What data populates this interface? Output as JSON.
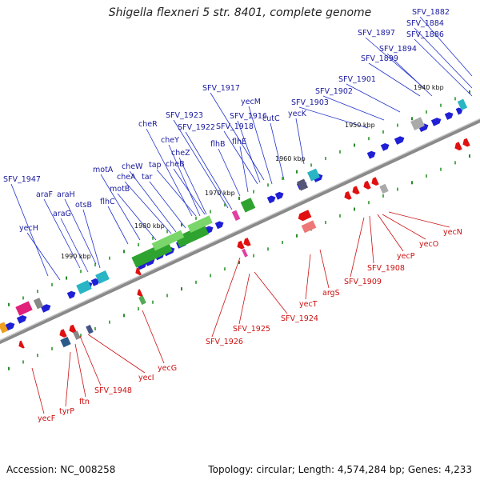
{
  "title": "Shigella flexneri 5 str. 8401, complete genome",
  "footer": {
    "accession": "Accession: NC_008258",
    "topology": "Topology: circular; Length: 4,574,284 bp; Genes: 4,233"
  },
  "colors": {
    "forward_gene": "#1f1fd6",
    "reverse_gene": "#e01010",
    "backbone": "#777777"
  },
  "kbp_markers": [
    "1940 kbp",
    "1950 kbp",
    "1960 kbp",
    "1970 kbp",
    "1980 kbp",
    "1990 kbp"
  ],
  "top_labels": [
    "SFV_1882",
    "SFV_1884",
    "SFV_1886",
    "SFV_1897",
    "SFV_1894",
    "SFV_1899",
    "SFV_1901",
    "SFV_1902",
    "SFV_1903",
    "SFV_1917",
    "yecM",
    "cutC",
    "yecK",
    "SFV_1916",
    "SFV_1918",
    "SFV_1923",
    "SFV_1922",
    "cheR",
    "flhE",
    "flhB",
    "cheY",
    "cheZ",
    "tap",
    "cheB",
    "cheW",
    "motA",
    "cheA",
    "tar",
    "motB",
    "flhC",
    "SFV_1947",
    "araF",
    "araH",
    "araG",
    "otsB",
    "yecH"
  ],
  "bottom_labels": [
    "yecN",
    "yecO",
    "yecP",
    "SFV_1908",
    "SFV_1909",
    "argS",
    "yecT",
    "SFV_1924",
    "SFV_1925",
    "SFV_1926",
    "yecG",
    "yecI",
    "SFV_1948",
    "ftn",
    "tyrP",
    "yecF"
  ]
}
